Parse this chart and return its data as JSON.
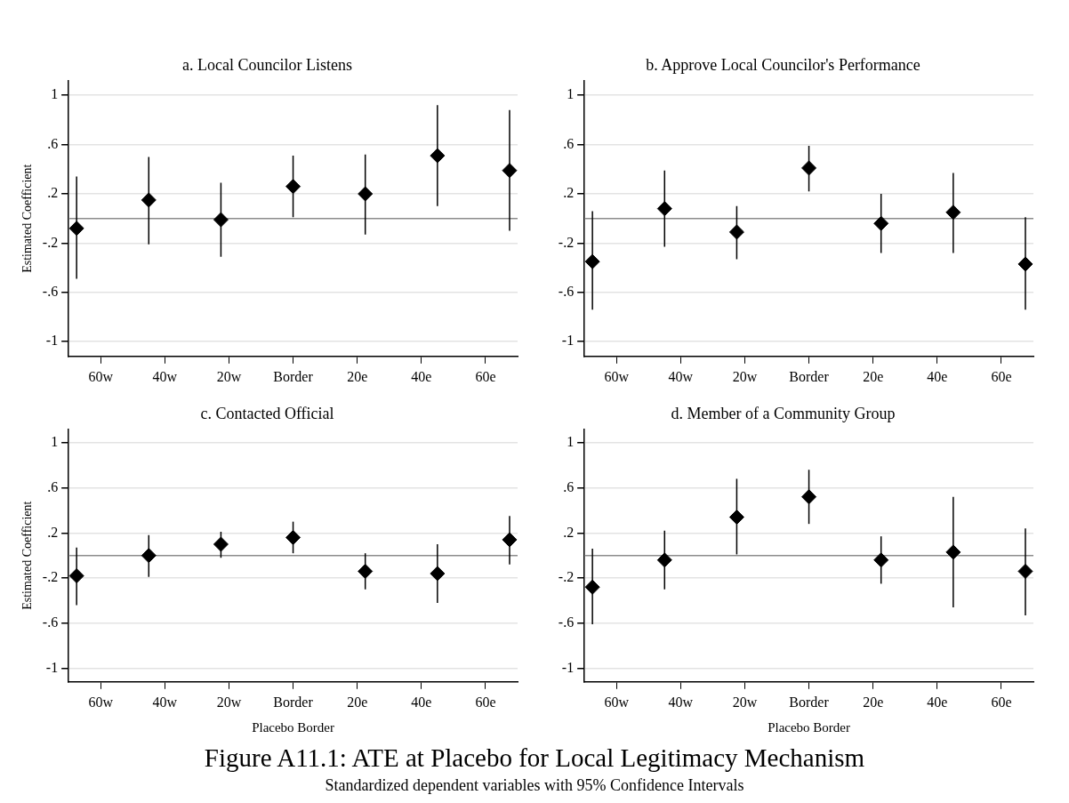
{
  "chart_data": [
    {
      "type": "scatter",
      "title": "a. Local Councilor Listens",
      "ylabel": "Estimated Coefficient",
      "x": [
        -67.5,
        -45,
        -22.5,
        0,
        22.5,
        45,
        67.5
      ],
      "series": [
        {
          "color": "#000000",
          "values": [
            -0.08,
            0.15,
            -0.01,
            0.26,
            0.2,
            0.51,
            0.39
          ],
          "errors": [
            [
              -0.49,
              0.34
            ],
            [
              -0.21,
              0.5
            ],
            [
              -0.31,
              0.29
            ],
            [
              0.01,
              0.51
            ],
            [
              -0.13,
              0.52
            ],
            [
              0.1,
              0.92
            ],
            [
              -0.1,
              0.88
            ]
          ]
        }
      ],
      "xlim": [
        -70,
        70
      ],
      "xticks": [
        {
          "value": -60,
          "label": "60w"
        },
        {
          "value": -40,
          "label": "40w"
        },
        {
          "value": -20,
          "label": "20w"
        },
        {
          "value": 0,
          "label": "Border"
        },
        {
          "value": 20,
          "label": "20e"
        },
        {
          "value": 40,
          "label": "40e"
        },
        {
          "value": 60,
          "label": "60e"
        }
      ],
      "ylim": [
        -1.12,
        1.12
      ],
      "yticks": [
        {
          "value": 1,
          "label": "1"
        },
        {
          "value": 0.6,
          "label": ".6"
        },
        {
          "value": 0.2,
          "label": ".2"
        },
        {
          "value": -0.2,
          "label": "-.2"
        },
        {
          "value": -0.6,
          "label": "-.6"
        },
        {
          "value": -1,
          "label": "-1"
        }
      ],
      "ref_lines": [
        {
          "axis": "y",
          "value": 0,
          "color": "#8c8c8c"
        }
      ],
      "grid": "y",
      "marker": "diamond",
      "legend": false
    },
    {
      "type": "scatter",
      "title": "b. Approve Local Councilor's Performance",
      "x": [
        -67.5,
        -45,
        -22.5,
        0,
        22.5,
        45,
        67.5
      ],
      "series": [
        {
          "color": "#000000",
          "values": [
            -0.35,
            0.08,
            -0.11,
            0.41,
            -0.04,
            0.05,
            -0.37
          ],
          "errors": [
            [
              -0.74,
              0.06
            ],
            [
              -0.23,
              0.39
            ],
            [
              -0.33,
              0.1
            ],
            [
              0.22,
              0.59
            ],
            [
              -0.28,
              0.2
            ],
            [
              -0.28,
              0.37
            ],
            [
              -0.74,
              0.01
            ]
          ]
        }
      ],
      "xlim": [
        -70,
        70
      ],
      "xticks": [
        {
          "value": -60,
          "label": "60w"
        },
        {
          "value": -40,
          "label": "40w"
        },
        {
          "value": -20,
          "label": "20w"
        },
        {
          "value": 0,
          "label": "Border"
        },
        {
          "value": 20,
          "label": "20e"
        },
        {
          "value": 40,
          "label": "40e"
        },
        {
          "value": 60,
          "label": "60e"
        }
      ],
      "ylim": [
        -1.12,
        1.12
      ],
      "yticks": [
        {
          "value": 1,
          "label": "1"
        },
        {
          "value": 0.6,
          "label": ".6"
        },
        {
          "value": 0.2,
          "label": ".2"
        },
        {
          "value": -0.2,
          "label": "-.2"
        },
        {
          "value": -0.6,
          "label": "-.6"
        },
        {
          "value": -1,
          "label": "-1"
        }
      ],
      "ref_lines": [
        {
          "axis": "y",
          "value": 0,
          "color": "#8c8c8c"
        }
      ],
      "grid": "y",
      "marker": "diamond",
      "legend": false
    },
    {
      "type": "scatter",
      "title": "c. Contacted Official",
      "xlabel": "Placebo Border",
      "ylabel": "Estimated Coefficient",
      "x": [
        -67.5,
        -45,
        -22.5,
        0,
        22.5,
        45,
        67.5
      ],
      "series": [
        {
          "color": "#000000",
          "values": [
            -0.18,
            0,
            0.1,
            0.16,
            -0.14,
            -0.16,
            0.14
          ],
          "errors": [
            [
              -0.44,
              0.07
            ],
            [
              -0.19,
              0.18
            ],
            [
              -0.02,
              0.21
            ],
            [
              0.02,
              0.3
            ],
            [
              -0.3,
              0.02
            ],
            [
              -0.42,
              0.1
            ],
            [
              -0.08,
              0.35
            ]
          ]
        }
      ],
      "xlim": [
        -70,
        70
      ],
      "xticks": [
        {
          "value": -60,
          "label": "60w"
        },
        {
          "value": -40,
          "label": "40w"
        },
        {
          "value": -20,
          "label": "20w"
        },
        {
          "value": 0,
          "label": "Border"
        },
        {
          "value": 20,
          "label": "20e"
        },
        {
          "value": 40,
          "label": "40e"
        },
        {
          "value": 60,
          "label": "60e"
        }
      ],
      "ylim": [
        -1.12,
        1.12
      ],
      "yticks": [
        {
          "value": 1,
          "label": "1"
        },
        {
          "value": 0.6,
          "label": ".6"
        },
        {
          "value": 0.2,
          "label": ".2"
        },
        {
          "value": -0.2,
          "label": "-.2"
        },
        {
          "value": -0.6,
          "label": "-.6"
        },
        {
          "value": -1,
          "label": "-1"
        }
      ],
      "ref_lines": [
        {
          "axis": "y",
          "value": 0,
          "color": "#8c8c8c"
        }
      ],
      "grid": "y",
      "marker": "diamond",
      "legend": false
    },
    {
      "type": "scatter",
      "title": "d. Member of a Community Group",
      "xlabel": "Placebo Border",
      "x": [
        -67.5,
        -45,
        -22.5,
        0,
        22.5,
        45,
        67.5
      ],
      "series": [
        {
          "color": "#000000",
          "values": [
            -0.28,
            -0.04,
            0.34,
            0.52,
            -0.04,
            0.03,
            -0.14
          ],
          "errors": [
            [
              -0.61,
              0.06
            ],
            [
              -0.3,
              0.22
            ],
            [
              0.01,
              0.68
            ],
            [
              0.28,
              0.76
            ],
            [
              -0.25,
              0.17
            ],
            [
              -0.46,
              0.52
            ],
            [
              -0.53,
              0.24
            ]
          ]
        }
      ],
      "xlim": [
        -70,
        70
      ],
      "xticks": [
        {
          "value": -60,
          "label": "60w"
        },
        {
          "value": -40,
          "label": "40w"
        },
        {
          "value": -20,
          "label": "20w"
        },
        {
          "value": 0,
          "label": "Border"
        },
        {
          "value": 20,
          "label": "20e"
        },
        {
          "value": 40,
          "label": "40e"
        },
        {
          "value": 60,
          "label": "60e"
        }
      ],
      "ylim": [
        -1.12,
        1.12
      ],
      "yticks": [
        {
          "value": 1,
          "label": "1"
        },
        {
          "value": 0.6,
          "label": ".6"
        },
        {
          "value": 0.2,
          "label": ".2"
        },
        {
          "value": -0.2,
          "label": "-.2"
        },
        {
          "value": -0.6,
          "label": "-.6"
        },
        {
          "value": -1,
          "label": "-1"
        }
      ],
      "ref_lines": [
        {
          "axis": "y",
          "value": 0,
          "color": "#8c8c8c"
        }
      ],
      "grid": "y",
      "marker": "diamond",
      "legend": false,
      "annotations": [
        "Figure A11.1: ATE at Placebo for Local Legitimacy Mechanism",
        "Standardized dependent variables with 95% Confidence Intervals"
      ]
    }
  ]
}
